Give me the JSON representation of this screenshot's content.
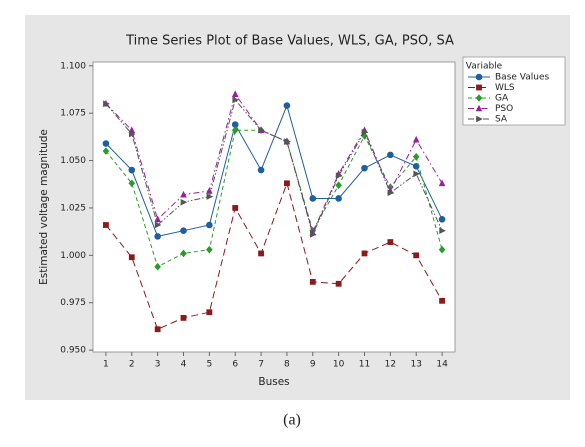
{
  "chart_data": {
    "type": "line",
    "title": "Time Series Plot of Base Values, WLS, GA, PSO, SA",
    "x_label": "Buses",
    "y_label": "Estimated voltage magnitude",
    "caption": "(a)",
    "legend_title": "Variable",
    "legend": "upper right outside",
    "x": [
      1,
      2,
      3,
      4,
      5,
      6,
      7,
      8,
      9,
      10,
      11,
      12,
      13,
      14
    ],
    "xlim": [
      0.5,
      14.5
    ],
    "xticks": [
      1,
      2,
      3,
      4,
      5,
      6,
      7,
      8,
      9,
      10,
      11,
      12,
      13,
      14
    ],
    "ylim": [
      0.949,
      1.102
    ],
    "yticks": [
      {
        "value": 0.95,
        "label": "0.950"
      },
      {
        "value": 0.975,
        "label": "0.975"
      },
      {
        "value": 1.0,
        "label": "1.000"
      },
      {
        "value": 1.025,
        "label": "1.025"
      },
      {
        "value": 1.05,
        "label": "1.050"
      },
      {
        "value": 1.075,
        "label": "1.075"
      },
      {
        "value": 1.1,
        "label": "1.100"
      }
    ],
    "grid": false,
    "series": [
      {
        "name": "Base Values",
        "color": "#1f5f9f",
        "marker": "circle",
        "dash": "solid",
        "values": [
          1.059,
          1.045,
          1.01,
          1.013,
          1.016,
          1.069,
          1.045,
          1.079,
          1.03,
          1.03,
          1.046,
          1.053,
          1.047,
          1.019
        ]
      },
      {
        "name": "WLS",
        "color": "#8b1a1a",
        "marker": "square",
        "dash": "longdash",
        "values": [
          1.016,
          0.999,
          0.961,
          0.967,
          0.97,
          1.025,
          1.001,
          1.038,
          0.986,
          0.985,
          1.001,
          1.007,
          1.0,
          0.976
        ]
      },
      {
        "name": "GA",
        "color": "#2a9a2a",
        "marker": "diamond",
        "dash": "dash",
        "values": [
          1.055,
          1.038,
          0.994,
          1.001,
          1.003,
          1.066,
          1.066,
          1.06,
          1.013,
          1.037,
          1.063,
          1.036,
          1.052,
          1.003
        ]
      },
      {
        "name": "PSO",
        "color": "#9a1fa0",
        "marker": "triangle-up",
        "dash": "dashdot",
        "values": [
          1.08,
          1.066,
          1.019,
          1.032,
          1.034,
          1.085,
          1.066,
          1.06,
          1.012,
          1.043,
          1.066,
          1.034,
          1.061,
          1.038
        ]
      },
      {
        "name": "SA",
        "color": "#555555",
        "marker": "triangle-right",
        "dash": "dashdotdot",
        "values": [
          1.08,
          1.064,
          1.016,
          1.028,
          1.031,
          1.082,
          1.066,
          1.06,
          1.011,
          1.042,
          1.065,
          1.033,
          1.043,
          1.013
        ]
      }
    ]
  }
}
